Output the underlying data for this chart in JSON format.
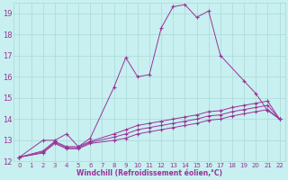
{
  "xlabel": "Windchill (Refroidissement éolien,°C)",
  "background_color": "#c8f0f0",
  "grid_color": "#aad8d8",
  "line_color": "#993399",
  "text_color": "#993399",
  "ylim": [
    12,
    19.5
  ],
  "xlim": [
    -0.5,
    22.5
  ],
  "yticks": [
    12,
    13,
    14,
    15,
    16,
    17,
    18,
    19
  ],
  "xticks": [
    0,
    1,
    2,
    3,
    4,
    5,
    6,
    7,
    8,
    9,
    10,
    11,
    12,
    13,
    14,
    15,
    16,
    17,
    18,
    19,
    20,
    21,
    22
  ],
  "lines": [
    {
      "x": [
        0,
        2,
        3,
        4,
        5,
        6,
        8,
        9,
        10,
        11,
        12,
        13,
        14,
        15,
        16,
        17,
        19,
        20,
        21,
        22
      ],
      "y": [
        12.2,
        13.0,
        13.0,
        13.3,
        12.7,
        13.1,
        15.5,
        16.9,
        16.0,
        16.1,
        18.3,
        19.3,
        19.4,
        18.8,
        19.1,
        17.0,
        15.8,
        15.2,
        14.4,
        14.0
      ]
    },
    {
      "x": [
        0,
        2,
        3,
        4,
        5,
        6,
        8,
        9,
        10,
        11,
        12,
        13,
        14,
        15,
        16,
        17,
        18,
        19,
        20,
        21,
        22
      ],
      "y": [
        12.2,
        12.5,
        12.95,
        12.7,
        12.7,
        12.95,
        13.3,
        13.5,
        13.7,
        13.8,
        13.9,
        14.0,
        14.1,
        14.2,
        14.35,
        14.4,
        14.55,
        14.65,
        14.75,
        14.85,
        14.0
      ]
    },
    {
      "x": [
        0,
        2,
        3,
        4,
        5,
        6,
        8,
        9,
        10,
        11,
        12,
        13,
        14,
        15,
        16,
        17,
        18,
        19,
        20,
        21,
        22
      ],
      "y": [
        12.2,
        12.45,
        12.9,
        12.65,
        12.65,
        12.9,
        13.15,
        13.3,
        13.5,
        13.6,
        13.7,
        13.8,
        13.9,
        14.0,
        14.15,
        14.2,
        14.35,
        14.45,
        14.55,
        14.65,
        14.0
      ]
    },
    {
      "x": [
        0,
        2,
        3,
        4,
        5,
        6,
        8,
        9,
        10,
        11,
        12,
        13,
        14,
        15,
        16,
        17,
        18,
        19,
        20,
        21,
        22
      ],
      "y": [
        12.2,
        12.4,
        12.85,
        12.6,
        12.6,
        12.85,
        13.0,
        13.1,
        13.3,
        13.4,
        13.5,
        13.6,
        13.7,
        13.8,
        13.95,
        14.0,
        14.15,
        14.25,
        14.35,
        14.45,
        14.0
      ]
    }
  ]
}
